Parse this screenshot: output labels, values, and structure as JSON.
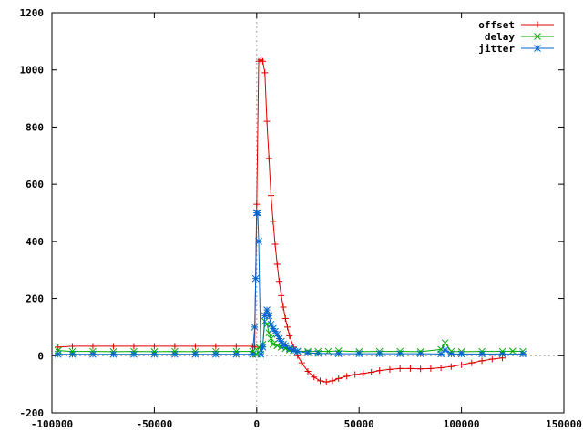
{
  "chart_data": {
    "type": "line",
    "title": "",
    "xlabel": "",
    "ylabel": "",
    "xlim": [
      -100000,
      150000
    ],
    "ylim": [
      -200,
      1200
    ],
    "x_ticks": [
      -100000,
      -50000,
      0,
      50000,
      100000,
      150000
    ],
    "y_ticks": [
      -200,
      0,
      200,
      400,
      600,
      800,
      1000,
      1200
    ],
    "x_tick_labels": [
      "-100000",
      "-50000",
      "0",
      "50000",
      "100000",
      "150000"
    ],
    "y_tick_labels": [
      "-200",
      "0",
      "200",
      "400",
      "600",
      "800",
      "1000",
      "1200"
    ],
    "zero_axes": true,
    "legend_position": "top-right",
    "series": [
      {
        "name": "offset",
        "color": "#dd0000",
        "marker": "plus",
        "x": [
          -97000,
          -90000,
          -80000,
          -70000,
          -60000,
          -50000,
          -40000,
          -30000,
          -20000,
          -10000,
          -2000,
          -1000,
          0,
          1000,
          2000,
          3000,
          4000,
          5000,
          6000,
          7000,
          8000,
          9000,
          10000,
          11000,
          12000,
          13000,
          14000,
          15000,
          16000,
          18000,
          20000,
          22000,
          25000,
          28000,
          31000,
          34000,
          37000,
          40000,
          44000,
          48000,
          52000,
          56000,
          60000,
          65000,
          70000,
          75000,
          80000,
          85000,
          90000,
          95000,
          100000,
          105000,
          110000,
          115000,
          120000
        ],
        "y": [
          30,
          33,
          33,
          33,
          33,
          33,
          33,
          33,
          33,
          33,
          33,
          30,
          530,
          1030,
          1035,
          1030,
          990,
          820,
          690,
          560,
          470,
          390,
          320,
          260,
          210,
          170,
          130,
          100,
          70,
          30,
          0,
          -25,
          -55,
          -75,
          -88,
          -92,
          -88,
          -80,
          -72,
          -66,
          -62,
          -58,
          -52,
          -48,
          -45,
          -45,
          -46,
          -45,
          -42,
          -38,
          -32,
          -25,
          -18,
          -12,
          -8
        ]
      },
      {
        "name": "delay",
        "color": "#00aa00",
        "marker": "cross",
        "x": [
          -97000,
          -90000,
          -80000,
          -70000,
          -60000,
          -50000,
          -40000,
          -30000,
          -20000,
          -10000,
          -2000,
          0,
          1000,
          2000,
          3000,
          4000,
          5000,
          6000,
          7000,
          8000,
          10000,
          12000,
          14000,
          16000,
          18000,
          20000,
          25000,
          30000,
          35000,
          40000,
          50000,
          60000,
          70000,
          80000,
          90000,
          92000,
          95000,
          100000,
          110000,
          120000,
          125000,
          130000
        ],
        "y": [
          18,
          15,
          15,
          14,
          15,
          14,
          15,
          14,
          15,
          15,
          15,
          5,
          30,
          20,
          40,
          120,
          110,
          80,
          60,
          40,
          35,
          30,
          25,
          20,
          18,
          16,
          15,
          15,
          15,
          17,
          14,
          15,
          15,
          14,
          22,
          45,
          15,
          14,
          15,
          15,
          16,
          15
        ]
      },
      {
        "name": "jitter",
        "color": "#0066cc",
        "marker": "star",
        "x": [
          -97000,
          -90000,
          -80000,
          -70000,
          -60000,
          -50000,
          -40000,
          -30000,
          -20000,
          -10000,
          -2000,
          -1000,
          -500,
          0,
          500,
          1000,
          2000,
          3000,
          4000,
          5000,
          6000,
          7000,
          8000,
          9000,
          10000,
          11000,
          12000,
          13000,
          14000,
          16000,
          18000,
          20000,
          25000,
          30000,
          40000,
          50000,
          60000,
          70000,
          80000,
          90000,
          92000,
          95000,
          100000,
          110000,
          120000,
          130000
        ],
        "y": [
          5,
          5,
          5,
          5,
          5,
          5,
          5,
          5,
          5,
          5,
          5,
          100,
          270,
          500,
          500,
          400,
          5,
          30,
          140,
          160,
          140,
          110,
          95,
          85,
          75,
          60,
          50,
          40,
          35,
          25,
          20,
          15,
          10,
          8,
          7,
          7,
          7,
          7,
          7,
          6,
          20,
          6,
          6,
          6,
          6,
          6
        ]
      }
    ]
  }
}
